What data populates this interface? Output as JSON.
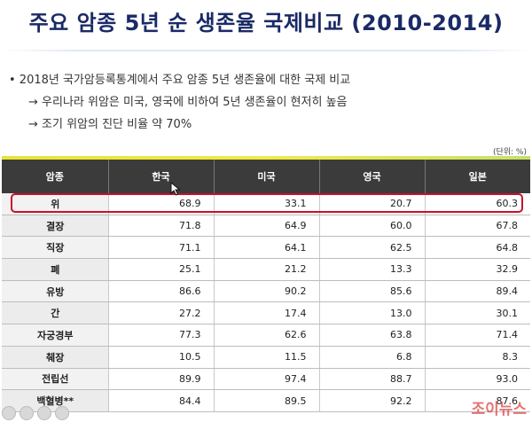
{
  "title": "주요 암종 5년 순 생존율 국제비교 (2010-2014)",
  "bullets": {
    "main": "• 2018년 국가암등록통계에서 주요 암종 5년 생존율에 대한 국제 비교",
    "sub1": "→ 우리나라 위암은 미국, 영국에 비하여 5년 생존율이 현저히 높음",
    "sub2": "→ 조기 위암의 진단 비율 약 70%"
  },
  "unit": "(단위: %)",
  "table": {
    "headers": [
      "암종",
      "한국",
      "미국",
      "영국",
      "일본"
    ],
    "rows": [
      {
        "cancer": "위",
        "korea": "68.9",
        "usa": "33.1",
        "uk": "20.7",
        "japan": "60.3"
      },
      {
        "cancer": "결장",
        "korea": "71.8",
        "usa": "64.9",
        "uk": "60.0",
        "japan": "67.8"
      },
      {
        "cancer": "직장",
        "korea": "71.1",
        "usa": "64.1",
        "uk": "62.5",
        "japan": "64.8"
      },
      {
        "cancer": "폐",
        "korea": "25.1",
        "usa": "21.2",
        "uk": "13.3",
        "japan": "32.9"
      },
      {
        "cancer": "유방",
        "korea": "86.6",
        "usa": "90.2",
        "uk": "85.6",
        "japan": "89.4"
      },
      {
        "cancer": "간",
        "korea": "27.2",
        "usa": "17.4",
        "uk": "13.0",
        "japan": "30.1"
      },
      {
        "cancer": "자궁경부",
        "korea": "77.3",
        "usa": "62.6",
        "uk": "63.8",
        "japan": "71.4"
      },
      {
        "cancer": "췌장",
        "korea": "10.5",
        "usa": "11.5",
        "uk": "6.8",
        "japan": "8.3"
      },
      {
        "cancer": "전립선",
        "korea": "89.9",
        "usa": "97.4",
        "uk": "88.7",
        "japan": "93.0"
      },
      {
        "cancer": "백혈병**",
        "korea": "84.4",
        "usa": "89.5",
        "uk": "92.2",
        "japan": "87.6"
      }
    ]
  },
  "watermark": "조이뉴스",
  "colors": {
    "title": "#1a2a66",
    "header_bg": "#3b3b3b",
    "highlight": "#c8102e",
    "accent": "#e8e23a"
  }
}
